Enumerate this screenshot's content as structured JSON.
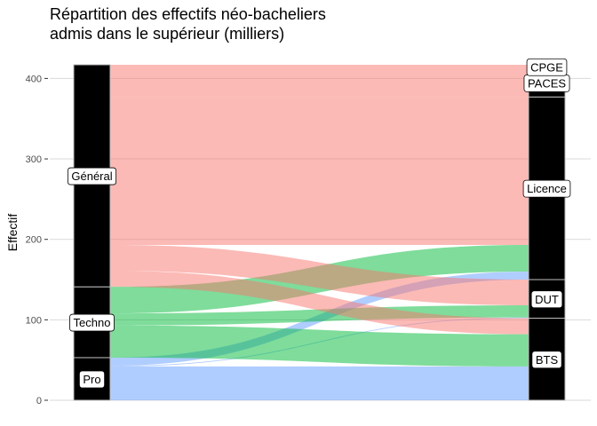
{
  "chart_data": {
    "type": "alluvial",
    "title_line1": "Répartition des effectifs néo-bacheliers",
    "title_line2": "admis dans le supérieur (milliers)",
    "xlabel": "",
    "ylabel": "Effectif",
    "ylim": [
      0,
      415
    ],
    "yticks": [
      0,
      100,
      200,
      300,
      400
    ],
    "grid": true,
    "sources": [
      {
        "label": "Pro",
        "value": 53
      },
      {
        "label": "Techno",
        "value": 88
      },
      {
        "label": "Général",
        "value": 276
      }
    ],
    "destinations": [
      {
        "label": "BTS",
        "value": 102
      },
      {
        "label": "DUT",
        "value": 48
      },
      {
        "label": "Licence",
        "value": 227
      },
      {
        "label": "PACES",
        "value": 35
      },
      {
        "label": "CPGE",
        "value": 5
      }
    ],
    "flows": [
      {
        "from": "Pro",
        "to": "BTS",
        "value": 42
      },
      {
        "from": "Pro",
        "to": "DUT",
        "value": 1
      },
      {
        "from": "Pro",
        "to": "Licence",
        "value": 10
      },
      {
        "from": "Techno",
        "to": "BTS",
        "value": 40
      },
      {
        "from": "Techno",
        "to": "DUT",
        "value": 15
      },
      {
        "from": "Techno",
        "to": "Licence",
        "value": 33
      },
      {
        "from": "Général",
        "to": "BTS",
        "value": 20
      },
      {
        "from": "Général",
        "to": "DUT",
        "value": 32
      },
      {
        "from": "Général",
        "to": "Licence",
        "value": 184
      },
      {
        "from": "Général",
        "to": "PACES",
        "value": 35
      },
      {
        "from": "Général",
        "to": "CPGE",
        "value": 5
      }
    ],
    "colors": {
      "Pro": "#619CFF",
      "Techno": "#00BA38",
      "Général": "#F8766D",
      "stratum": "#000000",
      "grid": "#d9d9d9"
    }
  }
}
